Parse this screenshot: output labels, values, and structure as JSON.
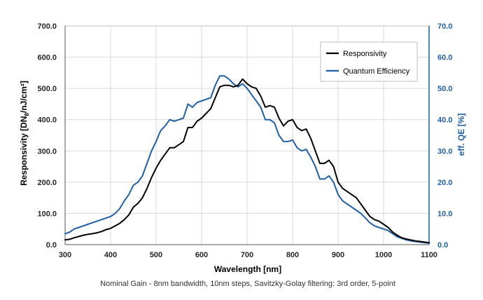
{
  "chart_data": {
    "type": "line",
    "title": "",
    "xlabel": "Wavelength [nm]",
    "ylabel_left_prefix": "Responsivity [DN",
    "ylabel_left_sub": "8",
    "ylabel_left_suffix": "/nJ/cm²]",
    "ylabel_right": "eff. QE [%]",
    "caption": "Nominal Gain - 8nm bandwidth, 10nm steps, Savitzky-Golay filtering: 3rd order, 5-point",
    "xlim": [
      300,
      1100
    ],
    "ylim_left": [
      0,
      700
    ],
    "ylim_right": [
      0,
      70
    ],
    "x_ticks": [
      "300",
      "400",
      "500",
      "600",
      "700",
      "800",
      "900",
      "1000",
      "1100"
    ],
    "y_ticks_left": [
      "0.0",
      "100.0",
      "200.0",
      "300.0",
      "400.0",
      "500.0",
      "600.0",
      "700.0"
    ],
    "y_ticks_right": [
      "0.0",
      "10.0",
      "20.0",
      "30.0",
      "40.0",
      "50.0",
      "60.0",
      "70.0"
    ],
    "grid": true,
    "legend_position": "top-right",
    "colors": {
      "responsivity": "#000000",
      "qe": "#1f5fa6",
      "right_axis": "#1f5fa6"
    },
    "series": [
      {
        "name": "Responsivity",
        "axis": "left",
        "x": [
          300,
          310,
          320,
          330,
          340,
          350,
          360,
          370,
          380,
          390,
          400,
          410,
          420,
          430,
          440,
          450,
          460,
          470,
          480,
          490,
          500,
          510,
          520,
          530,
          540,
          550,
          560,
          570,
          580,
          590,
          600,
          610,
          620,
          630,
          640,
          650,
          660,
          670,
          680,
          690,
          700,
          710,
          720,
          730,
          740,
          750,
          760,
          770,
          780,
          790,
          800,
          810,
          820,
          830,
          840,
          850,
          860,
          870,
          880,
          890,
          900,
          910,
          920,
          930,
          940,
          950,
          960,
          970,
          980,
          990,
          1000,
          1010,
          1020,
          1030,
          1040,
          1050,
          1060,
          1070,
          1080,
          1090,
          1100
        ],
        "y": [
          15,
          17,
          22,
          26,
          30,
          33,
          35,
          38,
          42,
          48,
          52,
          60,
          68,
          80,
          95,
          120,
          132,
          150,
          180,
          215,
          245,
          270,
          290,
          310,
          310,
          320,
          330,
          375,
          375,
          395,
          405,
          420,
          435,
          470,
          505,
          510,
          510,
          505,
          510,
          530,
          515,
          505,
          500,
          475,
          440,
          445,
          440,
          405,
          380,
          395,
          400,
          375,
          365,
          370,
          340,
          300,
          260,
          260,
          270,
          250,
          200,
          180,
          170,
          160,
          150,
          130,
          110,
          90,
          80,
          75,
          65,
          55,
          40,
          30,
          22,
          18,
          15,
          12,
          10,
          8,
          6
        ]
      },
      {
        "name": "Quantum Efficiency",
        "axis": "right",
        "x": [
          300,
          310,
          320,
          330,
          340,
          350,
          360,
          370,
          380,
          390,
          400,
          410,
          420,
          430,
          440,
          450,
          460,
          470,
          480,
          490,
          500,
          510,
          520,
          530,
          540,
          550,
          560,
          570,
          580,
          590,
          600,
          610,
          620,
          630,
          640,
          650,
          660,
          670,
          680,
          690,
          700,
          710,
          720,
          730,
          740,
          750,
          760,
          770,
          780,
          790,
          800,
          810,
          820,
          830,
          840,
          850,
          860,
          870,
          880,
          890,
          900,
          910,
          920,
          930,
          940,
          950,
          960,
          970,
          980,
          990,
          1000,
          1010,
          1020,
          1030,
          1040,
          1050,
          1060,
          1070,
          1080,
          1090,
          1100
        ],
        "y": [
          3.5,
          4,
          5,
          5.5,
          6,
          6.5,
          7,
          7.5,
          8,
          8.5,
          9,
          10,
          11.5,
          14,
          16,
          19,
          20,
          22,
          26,
          30,
          33,
          36.5,
          38,
          40,
          39.5,
          40,
          40.5,
          45,
          44,
          45.5,
          46,
          46.5,
          47,
          51,
          54,
          54,
          53,
          51.5,
          50.5,
          51.5,
          50,
          48,
          46,
          44,
          40,
          40,
          39,
          35,
          33,
          33,
          33.5,
          31,
          30,
          30.5,
          28,
          25,
          21,
          21,
          22,
          20,
          16,
          14,
          13,
          12,
          11,
          10,
          8.5,
          7,
          6,
          5.5,
          5,
          4.5,
          3.5,
          2.5,
          2,
          1.5,
          1.2,
          1,
          0.8,
          0.6,
          0.5
        ]
      }
    ]
  }
}
